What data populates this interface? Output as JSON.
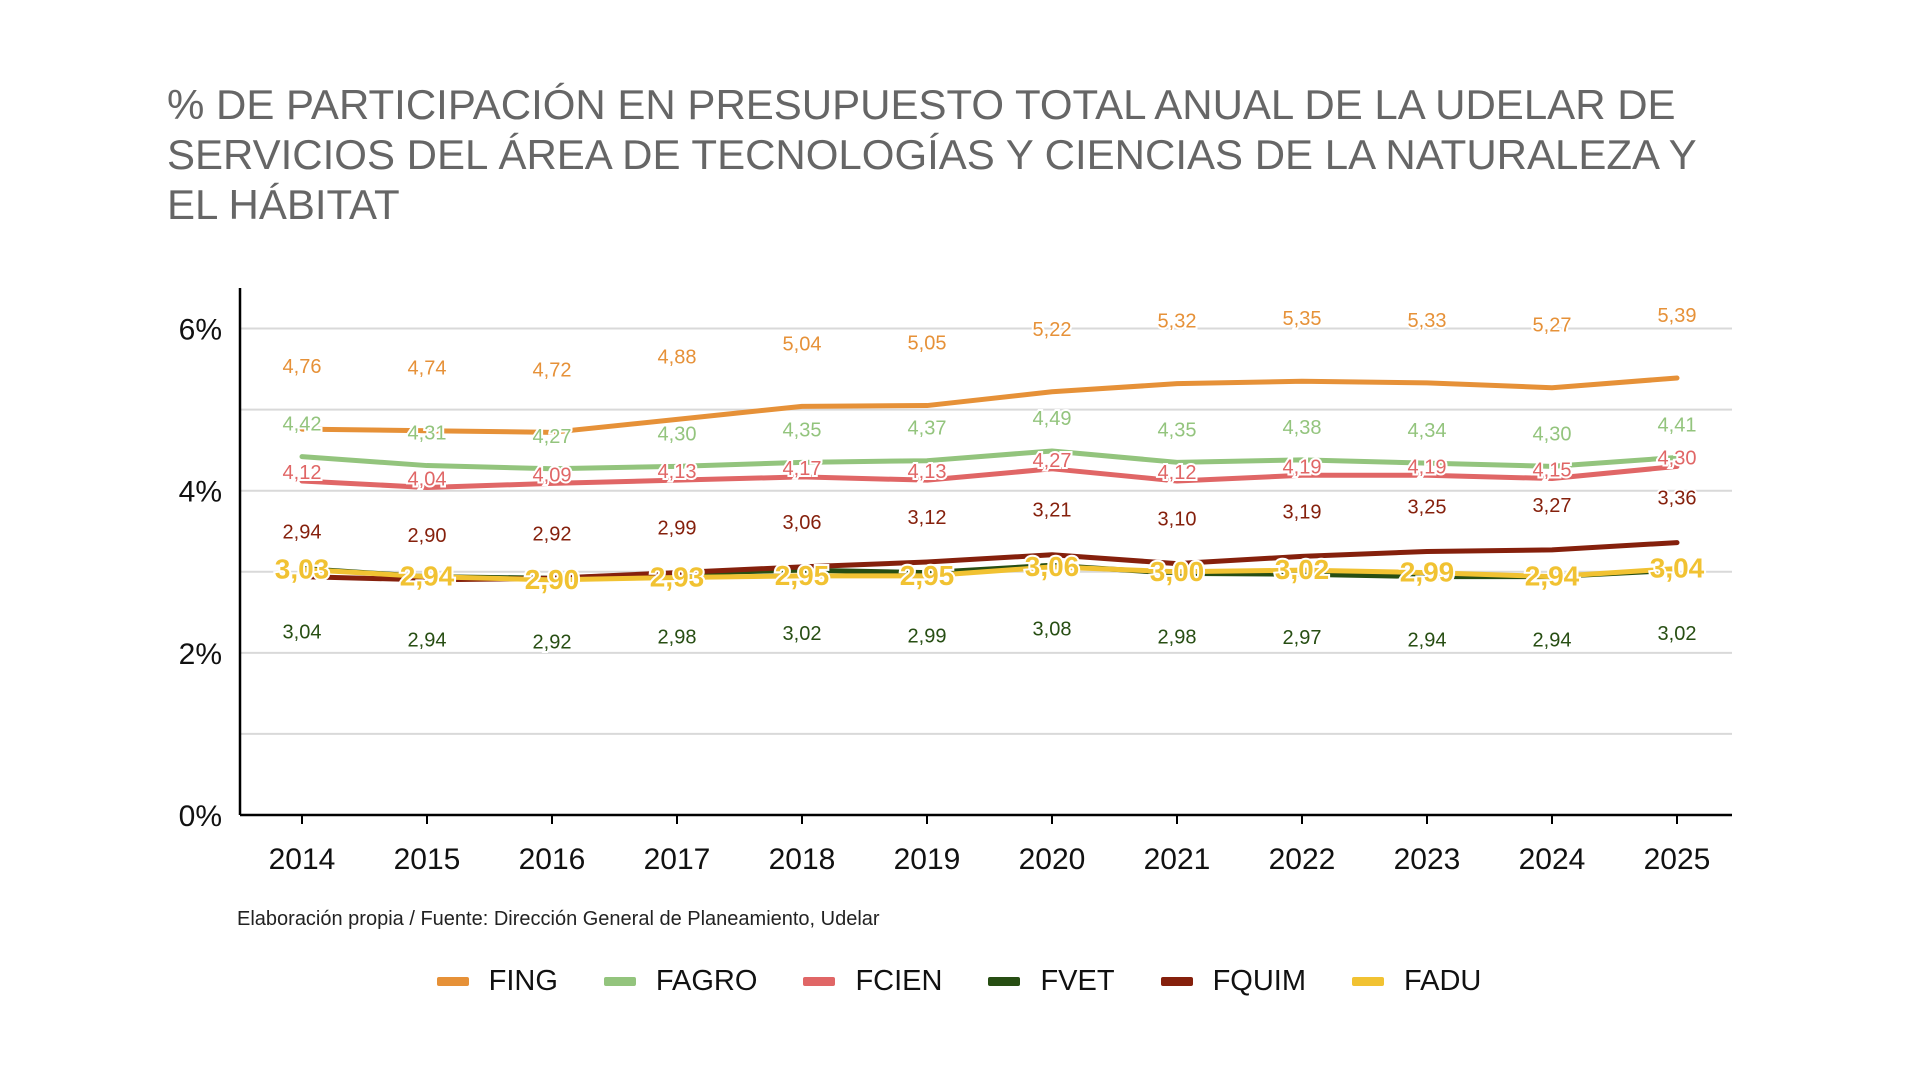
{
  "title": "% DE PARTICIPACIÓN EN PRESUPUESTO TOTAL ANUAL DE LA UDELAR DE SERVICIOS DEL ÁREA DE TECNOLOGÍAS Y CIENCIAS DE LA NATURALEZA Y EL HÁBITAT",
  "source": "Elaboración propia / Fuente: Dirección General de Planeamiento, Udelar",
  "chart_data": {
    "type": "line",
    "title": "% DE PARTICIPACIÓN EN PRESUPUESTO TOTAL ANUAL DE LA UDELAR DE SERVICIOS DEL ÁREA DE TECNOLOGÍAS Y CIENCIAS DE LA NATURALEZA Y EL HÁBITAT",
    "xlabel": "",
    "ylabel": "",
    "categories": [
      "2014",
      "2015",
      "2016",
      "2017",
      "2018",
      "2019",
      "2020",
      "2021",
      "2022",
      "2023",
      "2024",
      "2025"
    ],
    "ylim": [
      0,
      6.5
    ],
    "yticks": [
      0,
      2,
      4,
      6
    ],
    "ytick_labels": [
      "0%",
      "2%",
      "4%",
      "6%"
    ],
    "grid": true,
    "legend_position": "bottom",
    "series": [
      {
        "name": "FING",
        "color": "#E69138",
        "values": [
          4.76,
          4.74,
          4.72,
          4.88,
          5.04,
          5.05,
          5.22,
          5.32,
          5.35,
          5.33,
          5.27,
          5.39
        ],
        "labels": [
          "4,76",
          "4,74",
          "4,72",
          "4,88",
          "5,04",
          "5,05",
          "5,22",
          "5,32",
          "5,35",
          "5,33",
          "5,27",
          "5,39"
        ]
      },
      {
        "name": "FAGRO",
        "color": "#93C47D",
        "values": [
          4.42,
          4.31,
          4.27,
          4.3,
          4.35,
          4.37,
          4.49,
          4.35,
          4.38,
          4.34,
          4.3,
          4.41
        ],
        "labels": [
          "4,42",
          "4,31",
          "4,27",
          "4,30",
          "4,35",
          "4,37",
          "4,49",
          "4,35",
          "4,38",
          "4,34",
          "4,30",
          "4,41"
        ]
      },
      {
        "name": "FCIEN",
        "color": "#E06666",
        "values": [
          4.12,
          4.04,
          4.09,
          4.13,
          4.17,
          4.13,
          4.27,
          4.12,
          4.19,
          4.19,
          4.15,
          4.3
        ],
        "labels": [
          "4,12",
          "4,04",
          "4,09",
          "4,13",
          "4,17",
          "4,13",
          "4,27",
          "4,12",
          "4,19",
          "4,19",
          "4,15",
          "4,30"
        ]
      },
      {
        "name": "FVET",
        "color": "#274E13",
        "values": [
          3.04,
          2.94,
          2.92,
          2.98,
          3.02,
          2.99,
          3.08,
          2.98,
          2.97,
          2.94,
          2.94,
          3.02
        ],
        "labels": [
          "3,04",
          "2,94",
          "2,92",
          "2,98",
          "3,02",
          "2,99",
          "3,08",
          "2,98",
          "2,97",
          "2,94",
          "2,94",
          "3,02"
        ]
      },
      {
        "name": "FQUIM",
        "color": "#85200C",
        "values": [
          2.94,
          2.9,
          2.92,
          2.99,
          3.06,
          3.12,
          3.21,
          3.1,
          3.19,
          3.25,
          3.27,
          3.36
        ],
        "labels": [
          "2,94",
          "2,90",
          "2,92",
          "2,99",
          "3,06",
          "3,12",
          "3,21",
          "3,10",
          "3,19",
          "3,25",
          "3,27",
          "3,36"
        ]
      },
      {
        "name": "FADU",
        "color": "#F1C232",
        "values": [
          3.03,
          2.94,
          2.9,
          2.93,
          2.95,
          2.95,
          3.06,
          3.0,
          3.02,
          2.99,
          2.94,
          3.04
        ],
        "labels": [
          "3,03",
          "2,94",
          "2,90",
          "2,93",
          "2,95",
          "2,95",
          "3,06",
          "3,00",
          "3,02",
          "2,99",
          "2,94",
          "3,04"
        ]
      }
    ]
  }
}
